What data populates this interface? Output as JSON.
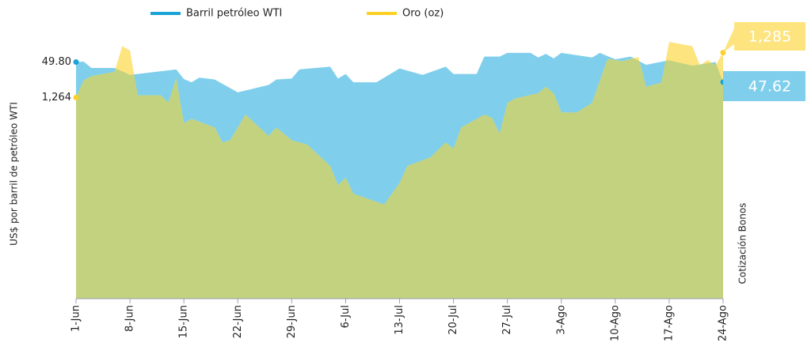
{
  "chart_data": {
    "type": "area",
    "y_label": "US$ por barril de petróleo WTI",
    "y2_label": "Cotización Bonos",
    "xlim": [
      0,
      84
    ],
    "xticks": [
      {
        "value": 0,
        "label": "1-Jun"
      },
      {
        "value": 7,
        "label": "8-Jun"
      },
      {
        "value": 14,
        "label": "15-Jun"
      },
      {
        "value": 21,
        "label": "22-Jun"
      },
      {
        "value": 28,
        "label": "29-Jun"
      },
      {
        "value": 35,
        "label": "6-Jul"
      },
      {
        "value": 42,
        "label": "13-Jul"
      },
      {
        "value": 49,
        "label": "20-Jul"
      },
      {
        "value": 56,
        "label": "27-Jul"
      },
      {
        "value": 63,
        "label": "3-Ago"
      },
      {
        "value": 70,
        "label": "10-Ago"
      },
      {
        "value": 77,
        "label": "17-Ago"
      },
      {
        "value": 84,
        "label": "24-Ago"
      }
    ],
    "ylim": [
      24,
      52
    ],
    "yticks": [
      {
        "value": 49.8,
        "label": "49.80"
      }
    ],
    "y2lim": [
      1170,
      1290
    ],
    "y2ticks": [
      {
        "value": 1264,
        "label": "1,264"
      }
    ],
    "series": [
      {
        "name": "Barril petróleo WTI",
        "color": "#7fcfec",
        "legend_color": "#1aa3d6",
        "x": [
          0,
          1,
          2,
          5,
          7,
          13,
          14,
          15,
          16,
          18,
          21,
          25,
          26,
          28,
          29,
          33,
          34,
          35,
          36,
          39,
          42,
          45,
          48,
          49,
          52,
          53,
          55,
          56,
          59,
          60,
          61,
          62,
          63,
          67,
          68,
          70,
          72,
          74,
          77,
          80,
          83,
          84
        ],
        "values": [
          49.8,
          49.85,
          49.16,
          49.16,
          48.4,
          49.0,
          47.95,
          47.6,
          48.1,
          47.9,
          46.5,
          47.3,
          47.9,
          48.0,
          49.0,
          49.3,
          48.0,
          48.5,
          47.6,
          47.6,
          49.1,
          48.4,
          49.3,
          48.5,
          48.5,
          50.4,
          50.4,
          50.8,
          50.8,
          50.3,
          50.7,
          50.2,
          50.8,
          50.3,
          50.8,
          50.1,
          50.4,
          49.5,
          50.0,
          49.4,
          49.8,
          47.62
        ],
        "value_labels": [
          null,
          null,
          null,
          null,
          null,
          null,
          null,
          null,
          null,
          null,
          null,
          null,
          null,
          null,
          null,
          null,
          null,
          null,
          null,
          null,
          null,
          null,
          null,
          null,
          null,
          null,
          null,
          null,
          null,
          null,
          null,
          null,
          null,
          null,
          null,
          null,
          null,
          null,
          null,
          null,
          null,
          "47.62"
        ]
      },
      {
        "name": "Oro (oz)",
        "color": "#fde47f",
        "legend_color": "#fdd026",
        "axis": "y2",
        "x": [
          0,
          1,
          2,
          5,
          6,
          7,
          8,
          11,
          12,
          13,
          14,
          15,
          18,
          19,
          20,
          22,
          25,
          26,
          28,
          30,
          33,
          34,
          35,
          36,
          40,
          42,
          43,
          46,
          48,
          49,
          50,
          53,
          54,
          55,
          56,
          57,
          60,
          61,
          62,
          63,
          65,
          67,
          69,
          71,
          73,
          74,
          76,
          77,
          80,
          81,
          82,
          83,
          84
        ],
        "values": [
          1264,
          1272,
          1274,
          1276,
          1288,
          1286,
          1265,
          1265,
          1261.6,
          1273,
          1252,
          1254,
          1250,
          1243,
          1244,
          1256,
          1246,
          1250,
          1244,
          1242,
          1232,
          1223,
          1226.5,
          1219,
          1214,
          1224,
          1232,
          1236,
          1243,
          1240,
          1250,
          1256,
          1254.5,
          1247,
          1261.5,
          1263.5,
          1266,
          1269,
          1266,
          1257,
          1257,
          1261.5,
          1282,
          1281,
          1283,
          1269,
          1271,
          1290,
          1288,
          1279,
          1281.5,
          1279,
          1285
        ],
        "value_labels": [
          null,
          null,
          null,
          null,
          null,
          null,
          null,
          null,
          null,
          null,
          null,
          null,
          null,
          null,
          null,
          null,
          null,
          null,
          null,
          null,
          null,
          null,
          null,
          null,
          null,
          null,
          null,
          null,
          null,
          null,
          null,
          null,
          null,
          null,
          null,
          null,
          null,
          null,
          null,
          null,
          null,
          null,
          null,
          null,
          null,
          null,
          null,
          null,
          null,
          null,
          null,
          null,
          "1,285"
        ]
      }
    ],
    "overlap_color": "#c3d27f"
  }
}
